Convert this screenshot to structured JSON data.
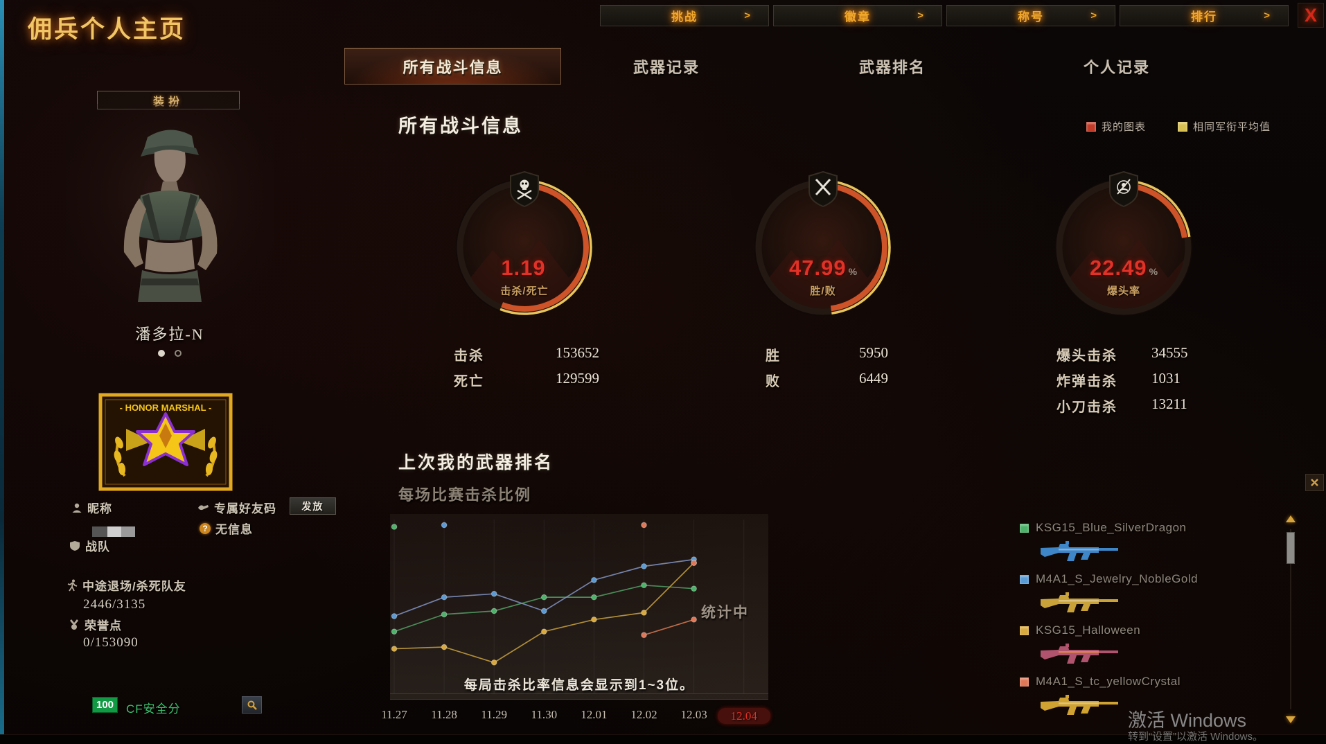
{
  "window": {
    "title": "佣兵个人主页",
    "close_label": "X"
  },
  "top_nav": {
    "arrow": ">",
    "items": [
      {
        "label": "挑战"
      },
      {
        "label": "徽章"
      },
      {
        "label": "称号"
      },
      {
        "label": "排行"
      }
    ]
  },
  "tabs": {
    "items": [
      {
        "label": "所有战斗信息",
        "active": true
      },
      {
        "label": "武器记录",
        "active": false
      },
      {
        "label": "武器排名",
        "active": false
      },
      {
        "label": "个人记录",
        "active": false
      }
    ]
  },
  "sidebar": {
    "dress_button": "装扮",
    "character_name": "潘多拉-N",
    "badge_title": "- HONOR MARSHAL -",
    "nickname_label": "昵称",
    "friend_code_label": "专属好友码",
    "issue_button": "发放",
    "no_info": "无信息",
    "question_mark": "?",
    "clan_label": "战队",
    "quit_label": "中途退场/杀死队友",
    "quit_value": "2446/3135",
    "honor_label": "荣誉点",
    "honor_value": "0/153090",
    "safety_score": "100",
    "safety_label": "CF安全分"
  },
  "stats_section": {
    "title": "所有战斗信息",
    "legend": [
      {
        "label": "我的图表",
        "color": "#c23b28"
      },
      {
        "label": "相同军衔平均值",
        "color": "#d8c050"
      }
    ],
    "gauges": [
      {
        "value": "1.19",
        "unit": "",
        "label": "击杀/死亡",
        "fraction": 0.56,
        "icon": "skull-crossbones"
      },
      {
        "value": "47.99",
        "unit": "%",
        "label": "胜/败",
        "fraction": 0.48,
        "icon": "crossed-rifles"
      },
      {
        "value": "22.49",
        "unit": "%",
        "label": "爆头率",
        "fraction": 0.225,
        "icon": "headshot"
      }
    ],
    "stat_columns": [
      {
        "rows": [
          {
            "label": "击杀",
            "value": "153652"
          },
          {
            "label": "死亡",
            "value": "129599"
          }
        ]
      },
      {
        "rows": [
          {
            "label": "胜",
            "value": "5950"
          },
          {
            "label": "败",
            "value": "6449"
          }
        ]
      },
      {
        "rows": [
          {
            "label": "爆头击杀",
            "value": "34555"
          },
          {
            "label": "炸弹击杀",
            "value": "1031"
          },
          {
            "label": "小刀击杀",
            "value": "13211"
          }
        ]
      }
    ]
  },
  "chart_section": {
    "title": "上次我的武器排名",
    "subtitle": "每场比赛击杀比例",
    "status_text": "统计中",
    "caption": "每局击杀比率信息会显示到1~3位。",
    "chart_data": {
      "type": "line",
      "x": [
        "11.27",
        "11.28",
        "11.29",
        "11.30",
        "12.01",
        "12.02",
        "12.03",
        "12.04"
      ],
      "selected_x": "12.04",
      "ylim": [
        0,
        100
      ],
      "grid": "vertical",
      "legend_position": "right",
      "series": [
        {
          "name": "KSG15_Blue_SilverDragon",
          "color": "#4db36a",
          "line_color": "#55a066",
          "values": [
            36,
            46,
            48,
            56,
            56,
            63,
            61,
            null
          ]
        },
        {
          "name": "M4A1_S_Jewelry_NobleGold",
          "color": "#5b9bd5",
          "line_color": "#8495c6",
          "values": [
            45,
            56,
            58,
            48,
            66,
            74,
            78,
            null
          ]
        },
        {
          "name": "KSG15_Halloween",
          "color": "#d9a93e",
          "line_color": "#c9a23e",
          "values": [
            26,
            27,
            18,
            36,
            43,
            47,
            76,
            null
          ]
        },
        {
          "name": "M4A1_S_tc_yellowCrystal",
          "color": "#e07858",
          "line_color": "#d87a52",
          "values": [
            null,
            null,
            null,
            null,
            null,
            34,
            43,
            null
          ]
        }
      ],
      "outlier_points": [
        {
          "series": "KSG15_Blue_SilverDragon",
          "x": "11.27",
          "value": 97
        },
        {
          "series": "M4A1_S_Jewelry_NobleGold",
          "x": "11.28",
          "value": 98
        },
        {
          "series": "M4A1_S_tc_yellowCrystal",
          "x": "12.02",
          "value": 98
        },
        {
          "series": "M4A1_S_tc_yellowCrystal",
          "x": "12.03",
          "value": 76
        }
      ]
    }
  },
  "weapons_panel": {
    "items": [
      {
        "name": "KSG15_Blue_SilverDragon",
        "color": "#4db36a",
        "gun_color": "#3f86c8"
      },
      {
        "name": "M4A1_S_Jewelry_NobleGold",
        "color": "#5b9bd5",
        "gun_color": "#c9a23a"
      },
      {
        "name": "KSG15_Halloween",
        "color": "#d9a93e",
        "gun_color": "#b0536e"
      },
      {
        "name": "M4A1_S_tc_yellowCrystal",
        "color": "#e07858",
        "gun_color": "#cfa232"
      }
    ]
  },
  "watermark": {
    "line1": "激活 Windows",
    "line2": "转到“设置”以激活 Windows。"
  }
}
